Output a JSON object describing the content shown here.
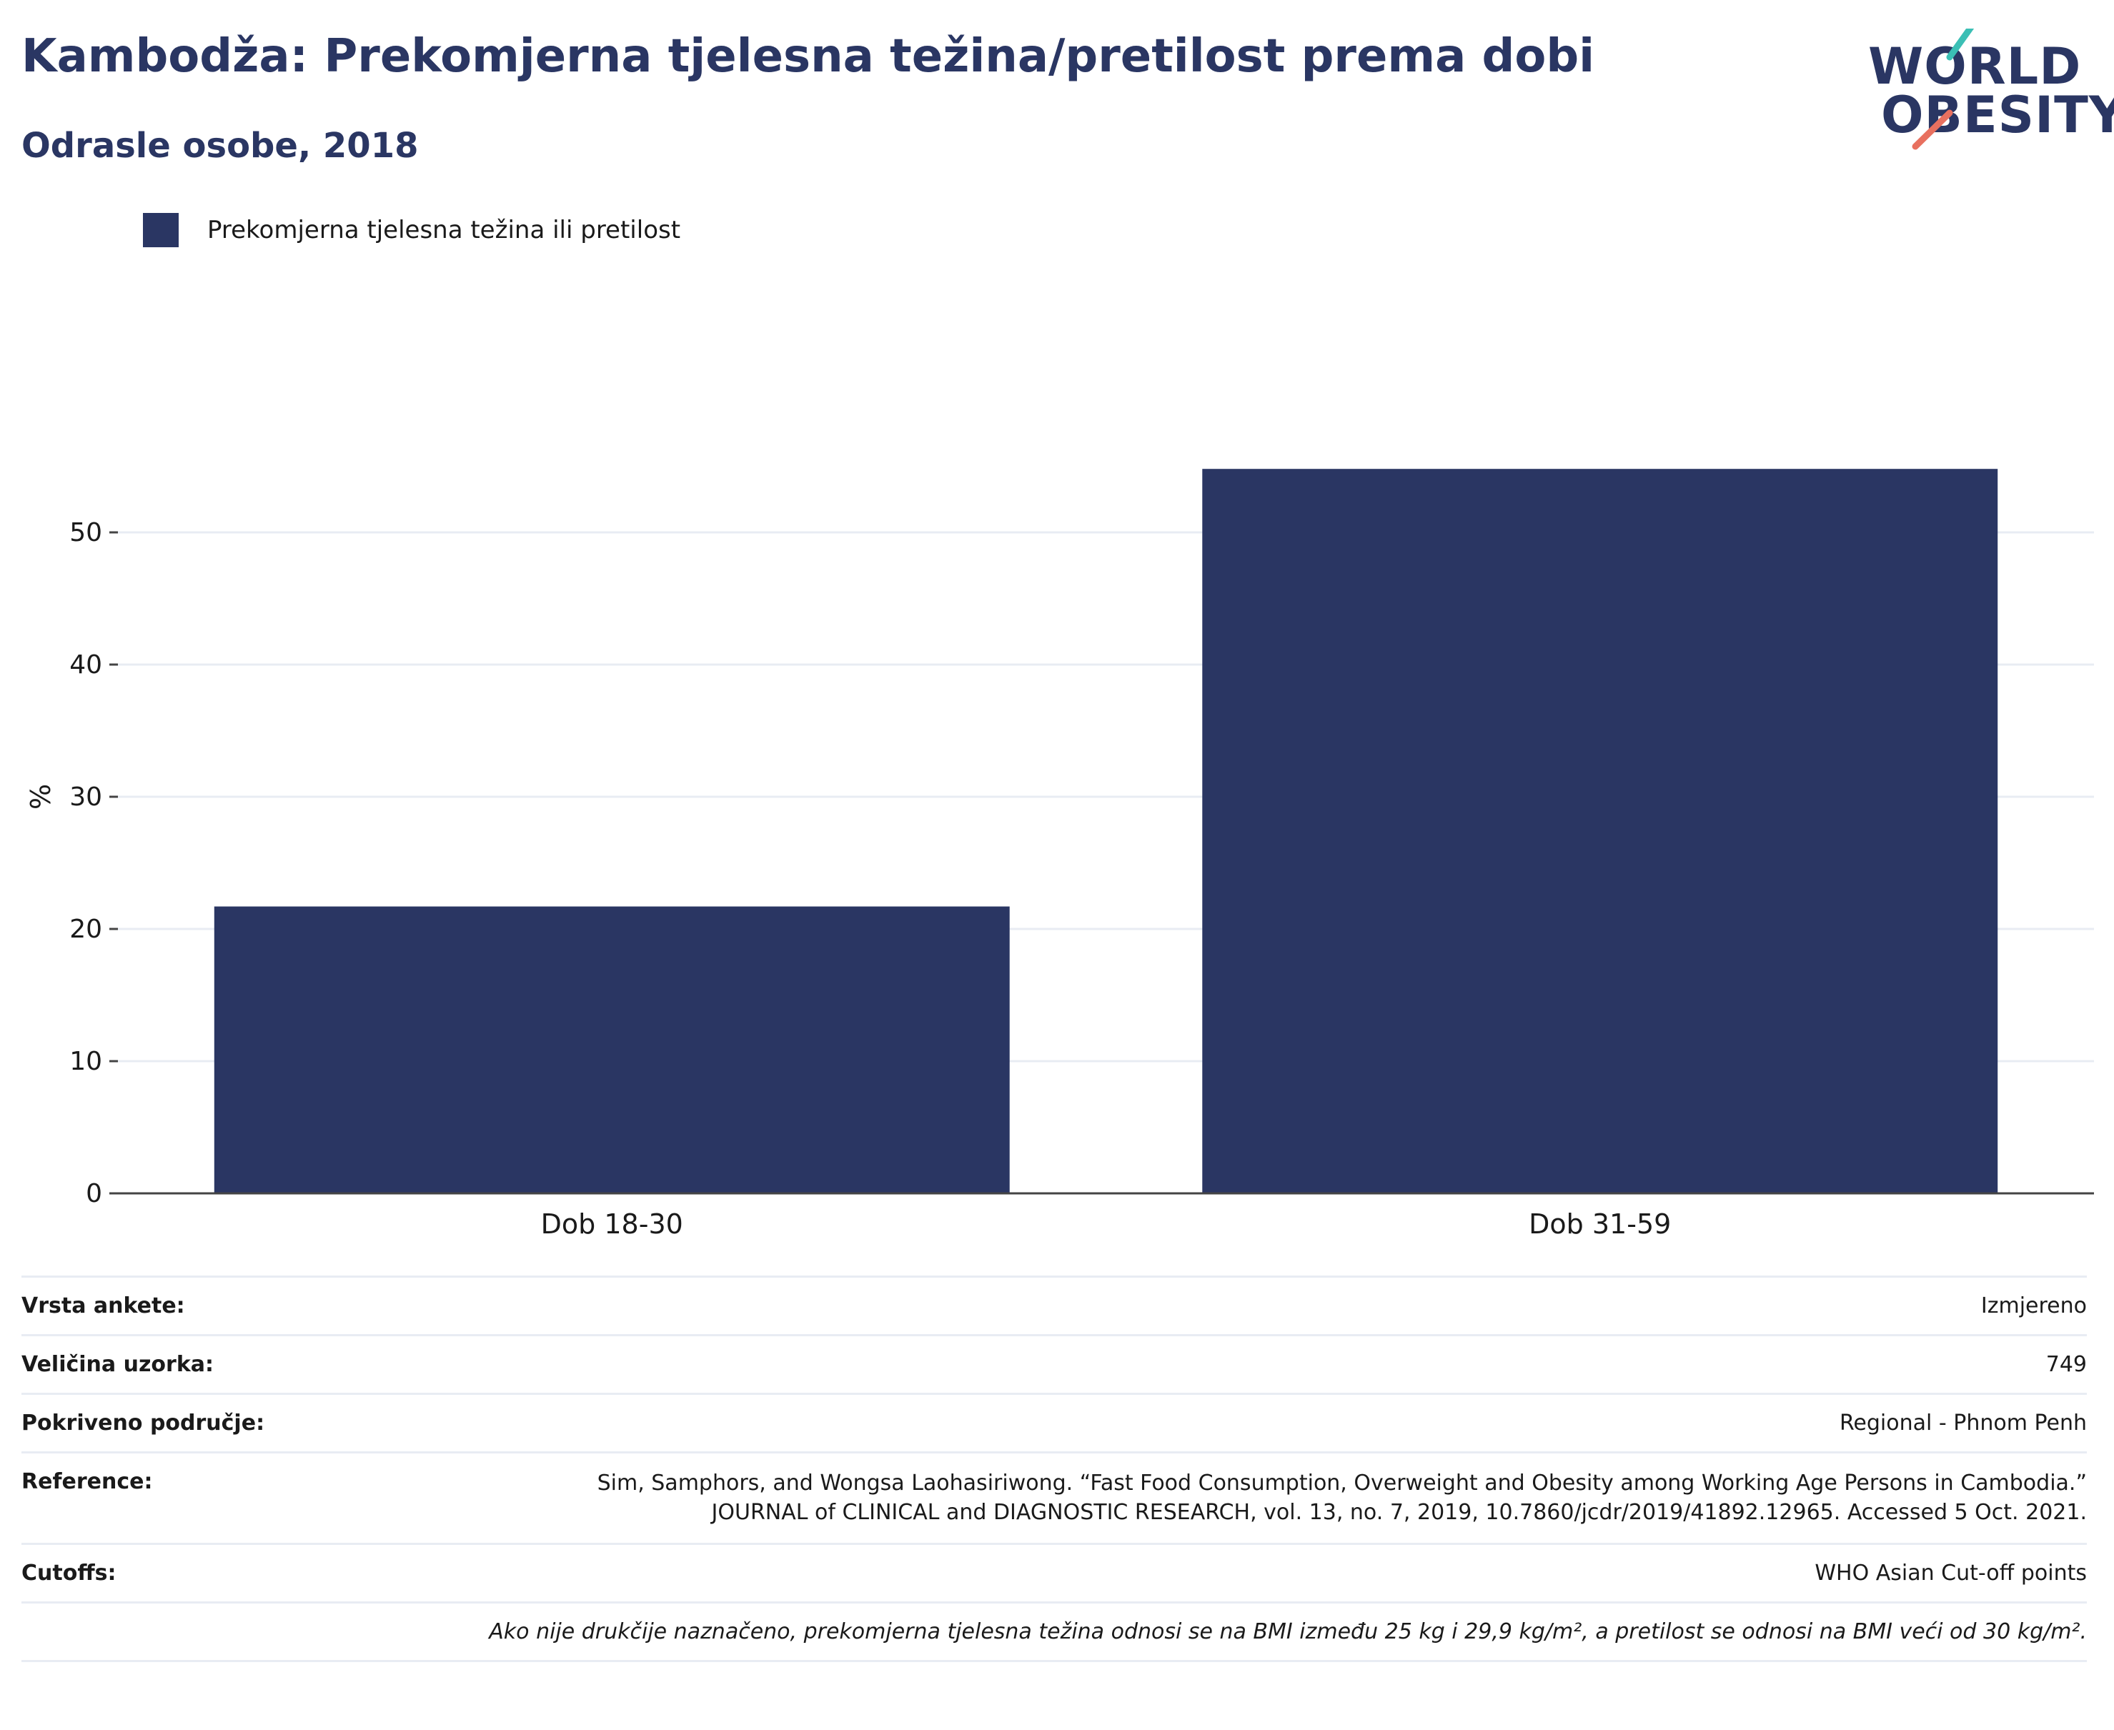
{
  "title": "Kambodža: Prekomjerna tjelesna težina/pretilost prema dobi",
  "subtitle": "Odrasle osobe, 2018",
  "logo": {
    "line1": "WORLD",
    "line2": "OBESITY"
  },
  "colors": {
    "bar": "#2a3663",
    "title": "#2a3663",
    "grid": "#e8ecf3",
    "accent_teal": "#3bbfb5",
    "accent_coral": "#e8705f"
  },
  "chart_data": {
    "type": "bar",
    "categories": [
      "Dob 18-30",
      "Dob 31-59"
    ],
    "series": [
      {
        "name": "Prekomjerna tjelesna težina ili pretilost",
        "values": [
          21.7,
          54.8
        ]
      }
    ],
    "ylabel": "%",
    "xlabel": "",
    "ylim": [
      0,
      60
    ],
    "yticks": [
      0,
      10,
      20,
      30,
      40,
      50
    ],
    "grid": true,
    "legend": "top-left"
  },
  "info": {
    "survey_type_label": "Vrsta ankete:",
    "survey_type_value": "Izmjereno",
    "sample_size_label": "Veličina uzorka:",
    "sample_size_value": "749",
    "coverage_label": "Pokriveno područje:",
    "coverage_value": "Regional - Phnom Penh",
    "reference_label": "Reference:",
    "reference_value": "Sim, Samphors, and Wongsa Laohasiriwong. “Fast Food Consumption, Overweight and Obesity among Working Age Persons in Cambodia.” JOURNAL of CLINICAL and DIAGNOSTIC RESEARCH, vol. 13, no. 7, 2019, 10.7860/jcdr/2019/41892.12965. Accessed 5 Oct. 2021.",
    "cutoffs_label": "Cutoffs:",
    "cutoffs_value": "WHO Asian Cut-off points",
    "note": "Ako nije drukčije naznačeno, prekomjerna tjelesna težina odnosi se na BMI između 25 kg i 29,9 kg/m², a pretilost se odnosi na BMI veći od 30 kg/m²."
  }
}
